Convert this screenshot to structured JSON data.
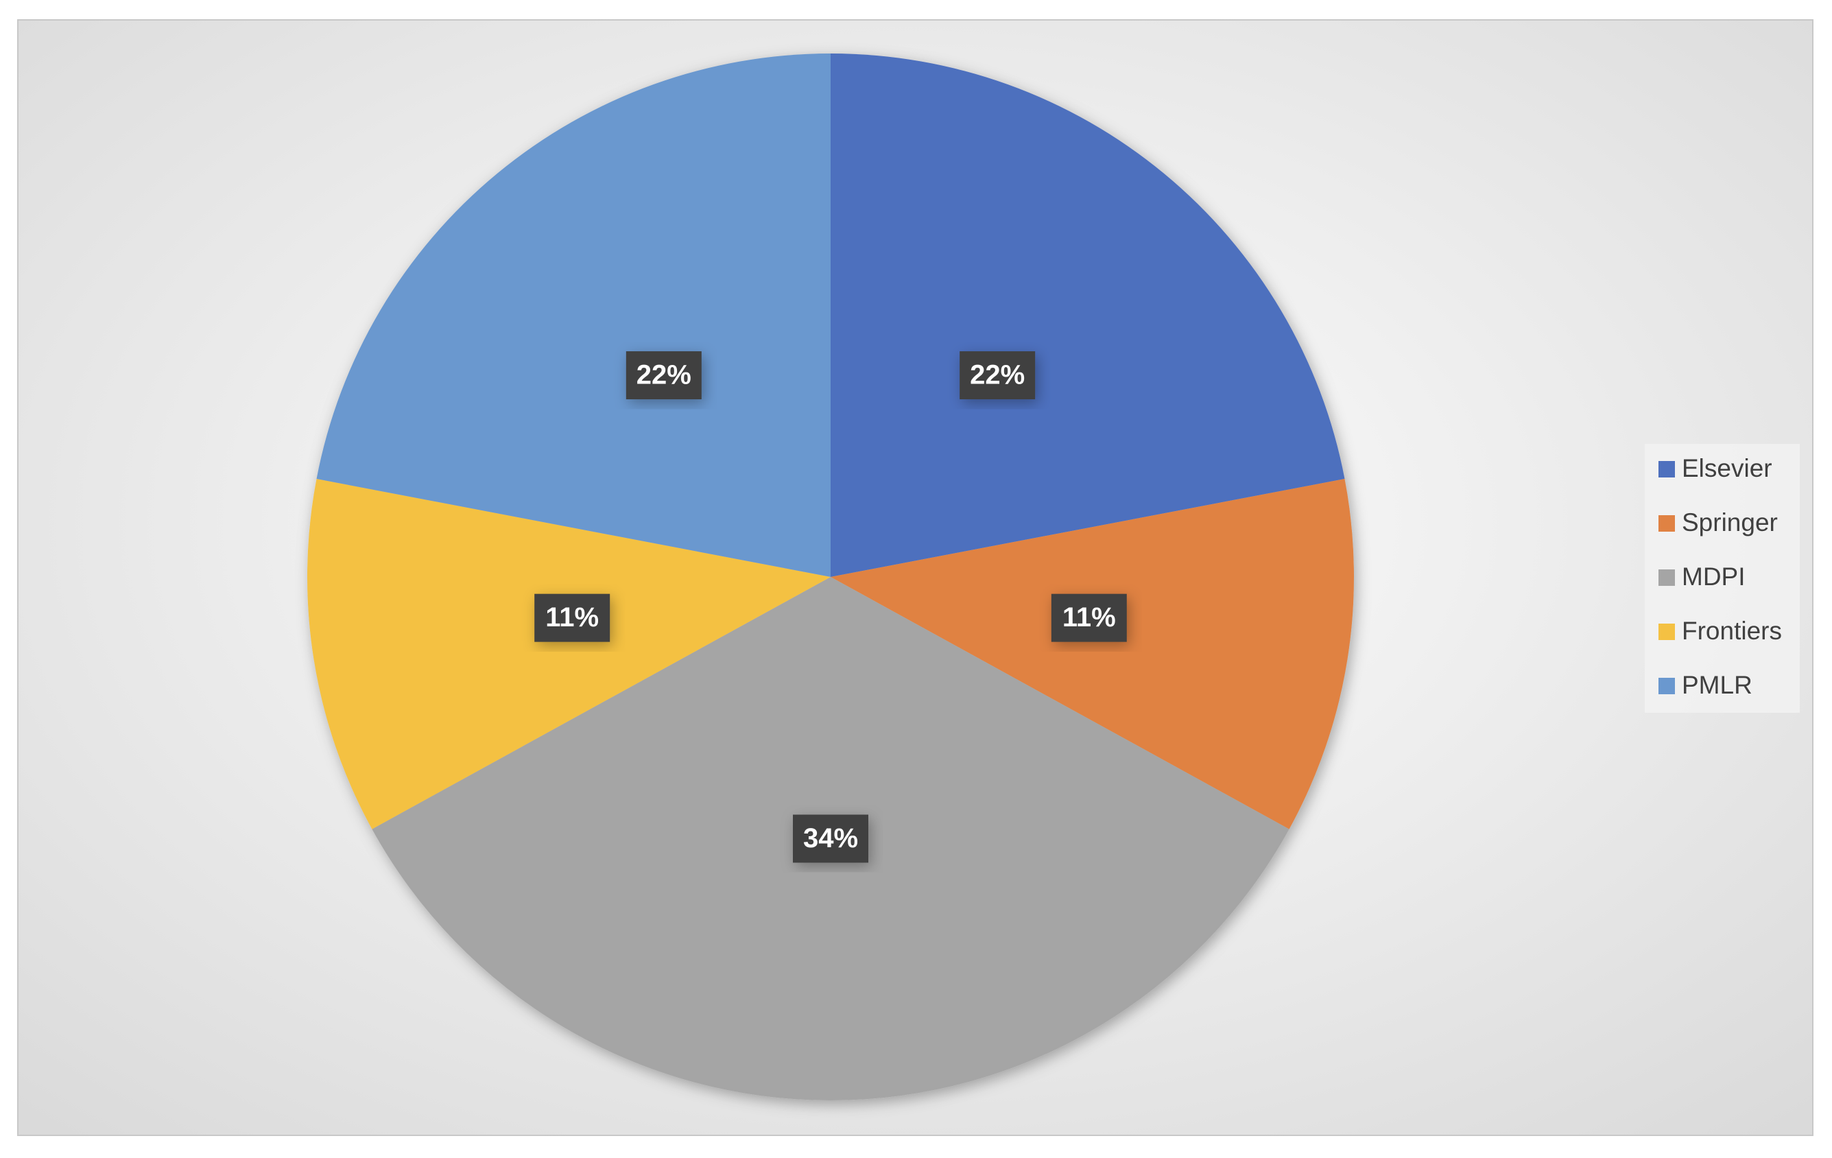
{
  "chart_data": {
    "type": "pie",
    "categories": [
      "Elsevier",
      "Springer",
      "MDPI",
      "Frontiers",
      "PMLR"
    ],
    "values": [
      22,
      11,
      34,
      11,
      22
    ],
    "value_labels": [
      "22%",
      "11%",
      "34%",
      "11%",
      "22%"
    ],
    "colors": [
      "#4e70be",
      "#e08243",
      "#a5a5a5",
      "#f4c143",
      "#6a98cf"
    ],
    "legend": "right"
  }
}
